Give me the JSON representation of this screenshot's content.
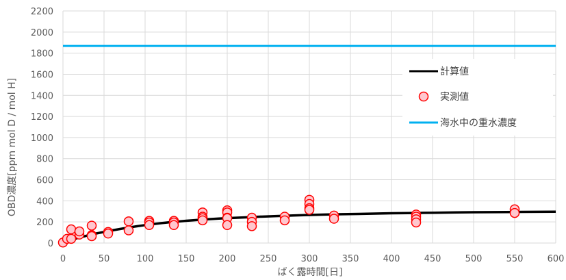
{
  "chart_data": {
    "type": "scatter",
    "title": "",
    "xlabel": "ばく露時間[日]",
    "ylabel": "OBD濃度[ppm mol D / mol H]",
    "xlim": [
      0,
      600
    ],
    "ylim": [
      0,
      2200
    ],
    "xticks": [
      0,
      50,
      100,
      150,
      200,
      250,
      300,
      350,
      400,
      450,
      500,
      550,
      600
    ],
    "yticks": [
      0,
      200,
      400,
      600,
      800,
      1000,
      1200,
      1400,
      1600,
      1800,
      2000,
      2200
    ],
    "grid": true,
    "legend_position": "right",
    "series": [
      {
        "name": "計算値",
        "kind": "line",
        "color": "#000000",
        "x": [
          0,
          10,
          20,
          30,
          40,
          50,
          60,
          70,
          80,
          90,
          100,
          110,
          120,
          130,
          140,
          150,
          160,
          170,
          180,
          190,
          200,
          220,
          240,
          260,
          280,
          300,
          320,
          340,
          360,
          380,
          400,
          420,
          440,
          460,
          480,
          500,
          520,
          540,
          560,
          580,
          600
        ],
        "y": [
          0,
          30,
          52,
          72,
          90,
          105,
          120,
          134,
          147,
          159,
          170,
          180,
          189,
          197,
          204,
          211,
          217,
          222,
          227,
          232,
          236,
          243,
          250,
          256,
          261,
          266,
          270,
          273,
          276,
          279,
          282,
          284,
          286,
          288,
          290,
          292,
          293,
          294,
          295,
          296,
          297
        ]
      },
      {
        "name": "実測値",
        "kind": "scatter",
        "color": "#ff0000",
        "fill": "#ffc7ce",
        "x": [
          0,
          5,
          10,
          10,
          20,
          20,
          35,
          35,
          35,
          55,
          55,
          80,
          80,
          105,
          105,
          105,
          135,
          135,
          135,
          170,
          170,
          170,
          170,
          200,
          200,
          200,
          200,
          200,
          230,
          230,
          230,
          270,
          270,
          300,
          300,
          300,
          300,
          330,
          330,
          430,
          430,
          430,
          430,
          550,
          550
        ],
        "y": [
          5,
          40,
          130,
          40,
          80,
          110,
          165,
          75,
          65,
          105,
          90,
          205,
          120,
          210,
          195,
          170,
          210,
          195,
          170,
          290,
          250,
          235,
          215,
          310,
          290,
          240,
          235,
          170,
          240,
          200,
          160,
          250,
          215,
          410,
          370,
          330,
          315,
          260,
          230,
          270,
          250,
          225,
          195,
          320,
          285
        ]
      },
      {
        "name": "海水中の重水濃度",
        "kind": "hline",
        "color": "#00b0f0",
        "y": 1868
      }
    ]
  }
}
